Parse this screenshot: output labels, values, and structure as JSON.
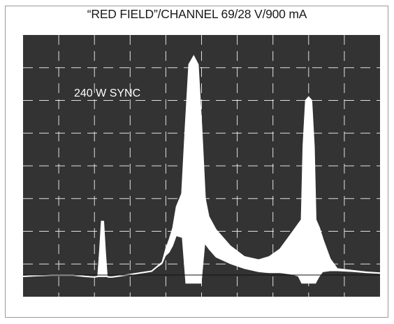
{
  "title": "“RED FIELD”/CHANNEL 69/28 V/900 mA",
  "annotation": "240 W SYNC",
  "colors": {
    "screen": "#333333",
    "trace": "#ffffff",
    "grid": "#ffffff",
    "frame": "#9a9a9a"
  },
  "chart_data": {
    "type": "area",
    "title": "“RED FIELD”/CHANNEL 69/28 V/900 mA",
    "annotations": [
      "240 W SYNC"
    ],
    "grid": true,
    "grid_divisions": {
      "x": 10,
      "y": 8
    },
    "xlim": [
      0,
      10
    ],
    "ylim": [
      0,
      8
    ],
    "series": [
      {
        "name": "",
        "x": [
          0.0,
          0.3,
          0.8,
          1.4,
          1.75,
          2.0,
          2.1,
          2.15,
          2.2,
          2.25,
          2.3,
          2.35,
          2.4,
          2.5,
          3.0,
          3.6,
          3.9,
          4.0,
          4.1,
          4.2,
          4.3,
          4.45,
          4.55,
          4.65,
          4.78,
          4.9,
          5.0,
          5.1,
          5.2,
          5.4,
          5.8,
          6.2,
          6.6,
          6.9,
          7.2,
          7.5,
          7.7,
          7.8,
          7.85,
          7.92,
          8.0,
          8.08,
          8.15,
          8.2,
          8.3,
          8.4,
          8.6,
          8.8,
          9.2,
          9.6,
          10.0
        ],
        "envelope": [
          0.62,
          0.64,
          0.66,
          0.66,
          0.62,
          0.6,
          0.62,
          1.4,
          2.3,
          2.3,
          1.4,
          0.62,
          0.6,
          0.6,
          0.68,
          0.78,
          1.05,
          1.45,
          1.75,
          2.1,
          2.75,
          3.15,
          5.2,
          7.1,
          7.35,
          7.1,
          5.2,
          3.0,
          2.45,
          2.05,
          1.55,
          1.22,
          1.12,
          1.22,
          1.45,
          1.9,
          2.2,
          2.35,
          4.6,
          6.0,
          6.1,
          6.0,
          4.6,
          2.35,
          2.1,
          1.75,
          1.15,
          0.85,
          0.8,
          0.75,
          0.72
        ],
        "valley": [
          0.62,
          0.64,
          0.66,
          0.66,
          0.62,
          0.6,
          0.6,
          0.6,
          0.6,
          0.6,
          0.6,
          0.6,
          0.6,
          0.6,
          0.68,
          0.78,
          1.0,
          1.25,
          1.35,
          1.55,
          1.85,
          1.8,
          0.4,
          0.4,
          0.4,
          0.4,
          0.4,
          1.6,
          1.45,
          1.2,
          1.0,
          0.85,
          0.75,
          0.72,
          0.72,
          0.68,
          0.62,
          0.4,
          0.4,
          0.4,
          0.4,
          0.4,
          0.4,
          0.4,
          0.6,
          0.75,
          0.78,
          0.78,
          0.76,
          0.72,
          0.7
        ]
      }
    ]
  }
}
